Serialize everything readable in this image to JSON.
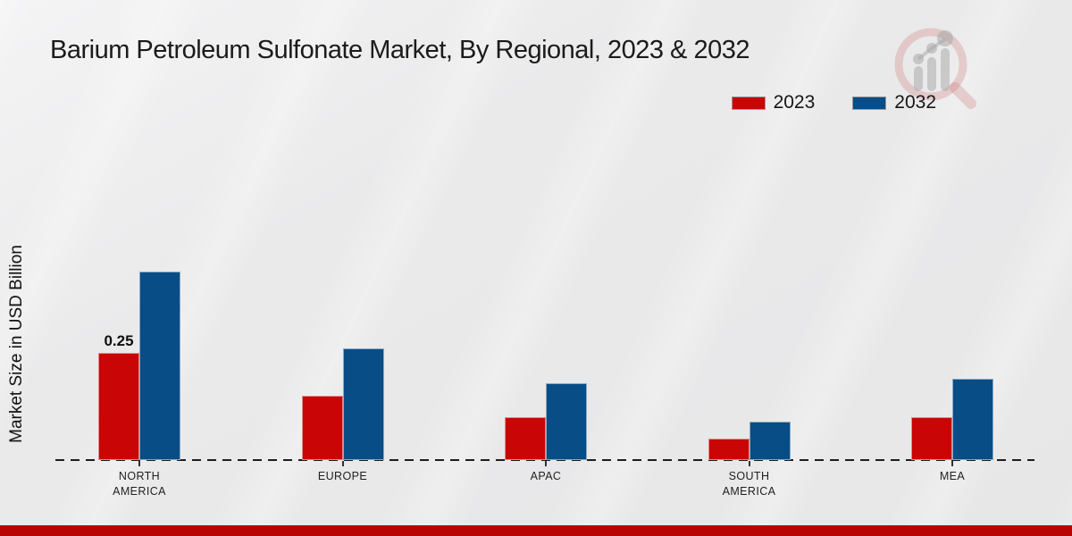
{
  "page": {
    "title": "Barium Petroleum Sulfonate Market, By Regional, 2023 & 2032"
  },
  "y_axis_label": "Market Size in USD Billion",
  "legend": {
    "items": [
      {
        "label": "2023",
        "color": "#c90505"
      },
      {
        "label": "2032",
        "color": "#084d85"
      }
    ]
  },
  "watermark_icon": "magnifier-bar-chart-logo-icon",
  "footer": {
    "color": "#b90404"
  },
  "chart_data": {
    "type": "bar",
    "title": "Barium Petroleum Sulfonate Market, By Regional, 2023 & 2032",
    "xlabel": "",
    "ylabel": "Market Size in USD Billion",
    "categories": [
      "NORTH\nAMERICA",
      "EUROPE",
      "APAC",
      "SOUTH\nAMERICA",
      "MEA"
    ],
    "series": [
      {
        "name": "2023",
        "color": "#c90505",
        "values": [
          0.25,
          0.15,
          0.1,
          0.05,
          0.1
        ],
        "labels": [
          "0.25",
          "",
          "",
          "",
          ""
        ]
      },
      {
        "name": "2032",
        "color": "#084d85",
        "values": [
          0.44,
          0.26,
          0.18,
          0.09,
          0.19
        ],
        "labels": [
          "",
          "",
          "",
          "",
          ""
        ]
      }
    ],
    "ylim": [
      0,
      0.5
    ],
    "grid": false,
    "axis_line": "dashed-baseline",
    "legend_position": "top-right",
    "annotations": [
      "0.25 labeled above North America 2023 bar"
    ]
  }
}
